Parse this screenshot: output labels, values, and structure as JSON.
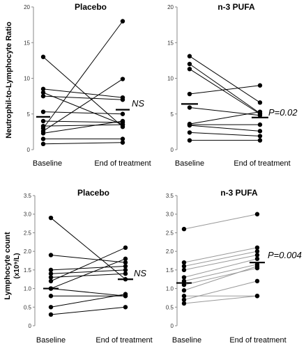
{
  "chart_data": [
    {
      "type": "line",
      "panel": "top-left",
      "title": "Placebo",
      "ylabel": "Neutrophil-to-Lymphocyte Ratio",
      "ylabel_sub": "",
      "ylim": [
        0,
        20
      ],
      "yticks": [
        "0",
        "5",
        "10",
        "15",
        "20"
      ],
      "categories": [
        "Baseline",
        "End of treatment"
      ],
      "line_color": "#000000",
      "pairs": [
        [
          13.0,
          3.2
        ],
        [
          8.5,
          7.3
        ],
        [
          8.0,
          3.5
        ],
        [
          7.5,
          7.0
        ],
        [
          5.3,
          5.0
        ],
        [
          4.0,
          3.8
        ],
        [
          3.3,
          3.5
        ],
        [
          3.0,
          18.0
        ],
        [
          2.6,
          9.9
        ],
        [
          2.3,
          4.0
        ],
        [
          1.5,
          1.5
        ],
        [
          0.8,
          1.0
        ]
      ],
      "baseline_mean": 4.6,
      "end_mean": 5.6,
      "annotation": "NS"
    },
    {
      "type": "line",
      "panel": "top-right",
      "title": "n-3 PUFA",
      "ylabel": "",
      "ylabel_sub": "",
      "ylim": [
        0,
        20
      ],
      "yticks": [
        "0",
        "5",
        "10",
        "15",
        "20"
      ],
      "categories": [
        "Baseline",
        "End of treatment"
      ],
      "line_color": "#000000",
      "pairs": [
        [
          13.1,
          6.6
        ],
        [
          12.0,
          5.1
        ],
        [
          11.3,
          5.0
        ],
        [
          7.8,
          9.0
        ],
        [
          5.9,
          4.8
        ],
        [
          3.6,
          5.3
        ],
        [
          3.5,
          3.5
        ],
        [
          3.4,
          2.6
        ],
        [
          2.4,
          1.9
        ],
        [
          1.3,
          1.3
        ]
      ],
      "baseline_mean": 6.4,
      "end_mean": 4.5,
      "annotation": "P=0.02"
    },
    {
      "type": "line",
      "panel": "bottom-left",
      "title": "Placebo",
      "ylabel": "Lymphocyte count",
      "ylabel_sub": "(x10⁹/L)",
      "ylim": [
        0,
        3.5
      ],
      "yticks": [
        "0",
        "0.5",
        "1.0",
        "1.5",
        "2.0",
        "2.5",
        "3.0",
        "3.5"
      ],
      "categories": [
        "Baseline",
        "End of treatment"
      ],
      "line_color": "#000000",
      "pairs": [
        [
          2.9,
          1.25
        ],
        [
          1.9,
          1.7
        ],
        [
          1.5,
          1.6
        ],
        [
          1.4,
          1.5
        ],
        [
          1.3,
          1.4
        ],
        [
          1.2,
          2.1
        ],
        [
          1.0,
          1.8
        ],
        [
          1.0,
          0.8
        ],
        [
          0.8,
          0.8
        ],
        [
          0.5,
          0.85
        ],
        [
          0.3,
          0.5
        ]
      ],
      "baseline_mean": 1.0,
      "end_mean": 1.25,
      "annotation": "NS"
    },
    {
      "type": "line",
      "panel": "bottom-right",
      "title": "n-3 PUFA",
      "ylabel": "",
      "ylabel_sub": "",
      "ylim": [
        0,
        3.5
      ],
      "yticks": [
        "0",
        "0.5",
        "1.0",
        "1.5",
        "2.0",
        "2.5",
        "3.0",
        "3.5"
      ],
      "categories": [
        "Baseline",
        "End of treatment"
      ],
      "line_color": "#999999",
      "pairs": [
        [
          2.6,
          3.0
        ],
        [
          1.7,
          2.1
        ],
        [
          1.6,
          2.0
        ],
        [
          1.5,
          1.9
        ],
        [
          1.3,
          1.8
        ],
        [
          1.2,
          1.65
        ],
        [
          1.1,
          1.55
        ],
        [
          0.95,
          1.6
        ],
        [
          0.8,
          0.8
        ],
        [
          0.7,
          1.2
        ],
        [
          0.6,
          0.8
        ]
      ],
      "baseline_mean": 1.15,
      "end_mean": 1.7,
      "annotation": "P=0.004"
    }
  ]
}
